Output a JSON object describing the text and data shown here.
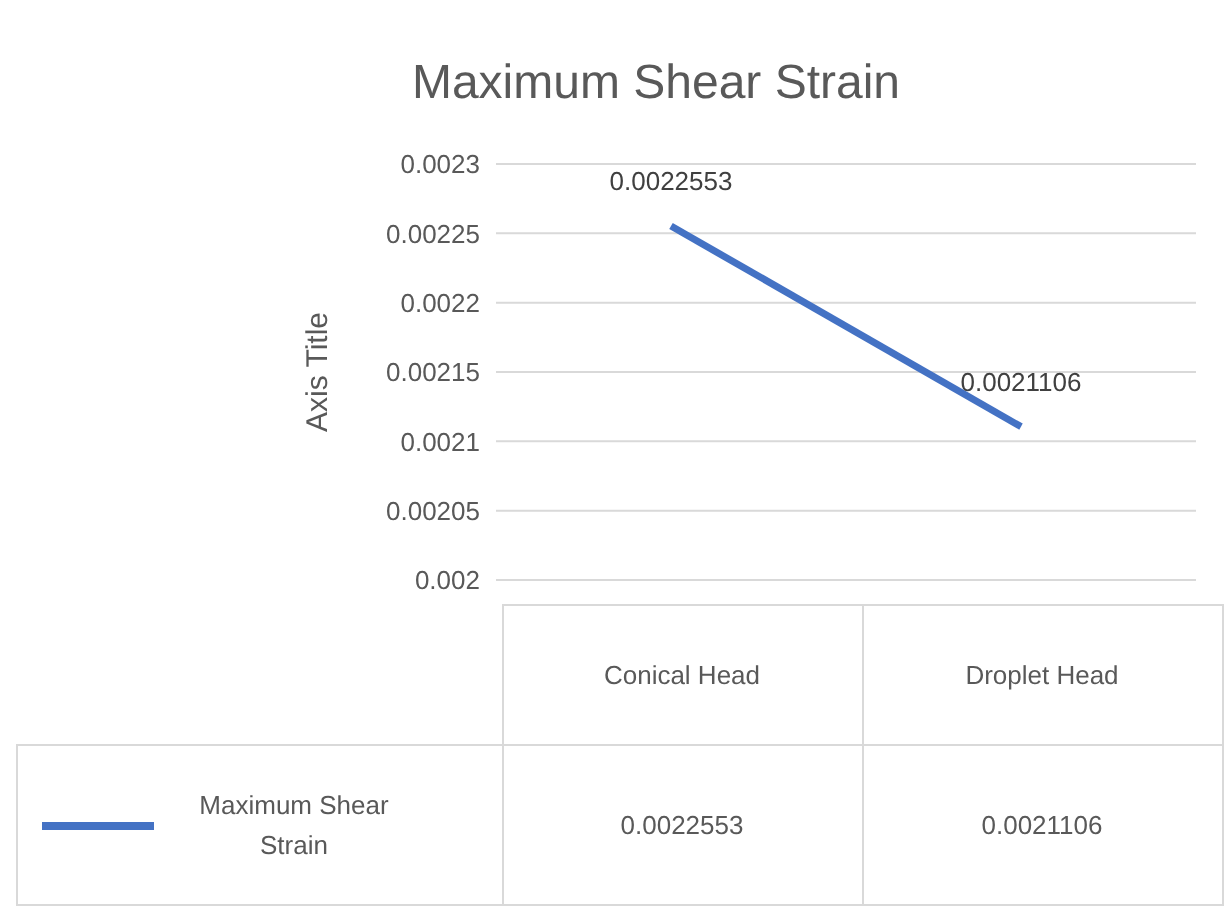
{
  "chart_data": {
    "type": "line",
    "title": "Maximum Shear Strain",
    "ylabel": "Axis Title",
    "categories": [
      "Conical Head",
      "Droplet Head"
    ],
    "series": [
      {
        "name": "Maximum Shear Strain",
        "color": "#4472c4",
        "values": [
          0.0022553,
          0.0021106
        ],
        "value_labels": [
          "0.0022553",
          "0.0021106"
        ]
      }
    ],
    "ylim": [
      0.002,
      0.0023
    ],
    "yticks": [
      0.002,
      0.00205,
      0.0021,
      0.00215,
      0.0022,
      0.00225,
      0.0023
    ],
    "grid": "y",
    "legend": "bottom left",
    "marker": "none",
    "line_style": "solid"
  }
}
